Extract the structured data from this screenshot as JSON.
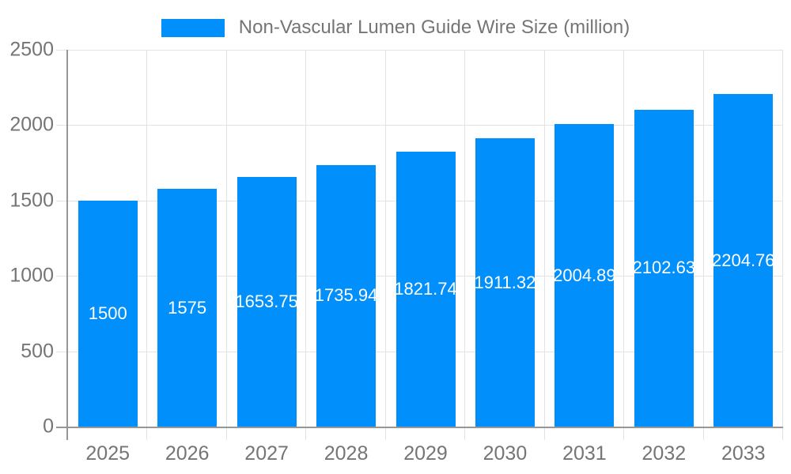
{
  "chart_data": {
    "type": "bar",
    "title": "Non-Vascular Lumen Guide Wire Size (million)",
    "categories": [
      "2025",
      "2026",
      "2027",
      "2028",
      "2029",
      "2030",
      "2031",
      "2032",
      "2033"
    ],
    "values": [
      1500,
      1575,
      1653.75,
      1735.94,
      1821.74,
      1911.32,
      2004.89,
      2102.63,
      2204.76
    ],
    "data_labels": [
      "1500",
      "1575",
      "1653.75",
      "1735.94",
      "1821.74",
      "1911.32",
      "2004.89",
      "2102.63",
      "2204.76"
    ],
    "xlabel": "",
    "ylabel": "",
    "ylim": [
      0,
      2500
    ],
    "y_ticks": [
      0,
      500,
      1000,
      1500,
      2000,
      2500
    ],
    "grid": true,
    "legend_position": "top",
    "colors": {
      "bar": "#008FFB",
      "bar_label": "#FFFFFF",
      "axis_text": "#757575",
      "axis_line": "#969696",
      "gridline": "#E3E3E3",
      "background": "#FFFFFF"
    }
  }
}
